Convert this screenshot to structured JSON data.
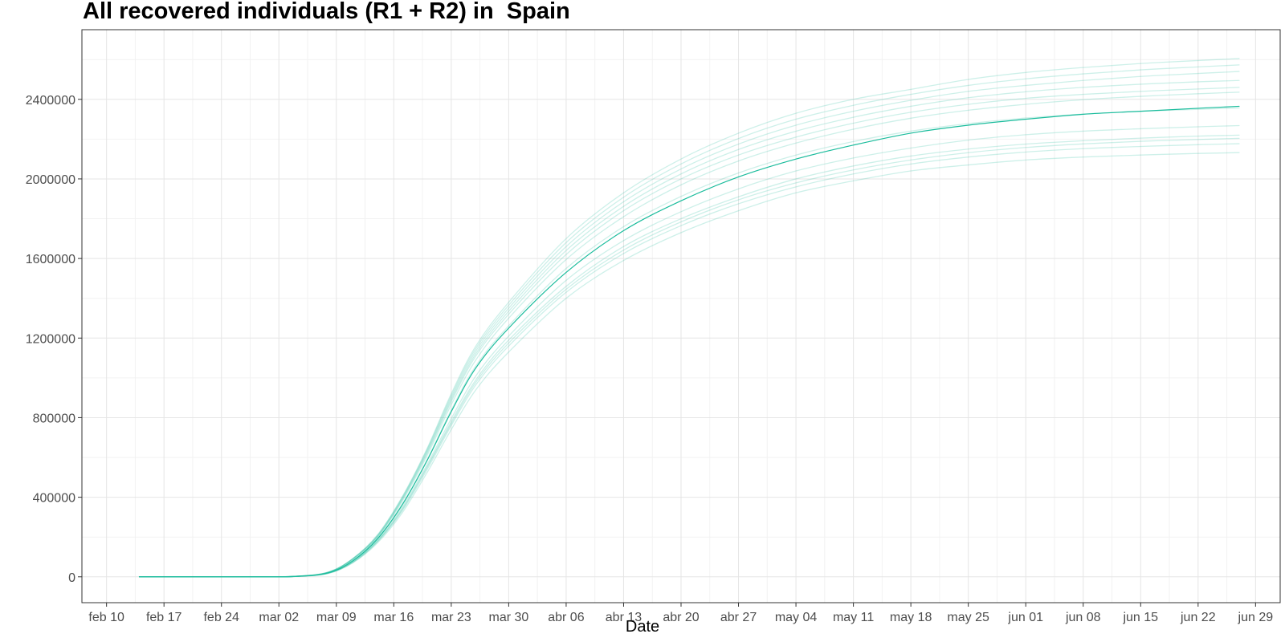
{
  "chart_data": {
    "type": "line",
    "title": "All recovered individuals (R1 + R2) in  Spain",
    "xlabel": "Date",
    "ylabel": "",
    "x_domain": [
      "2020-02-07",
      "2020-07-02"
    ],
    "y_domain": [
      -130000,
      2750000
    ],
    "x_ticks": [
      {
        "date": "2020-02-10",
        "label": "feb 10"
      },
      {
        "date": "2020-02-17",
        "label": "feb 17"
      },
      {
        "date": "2020-02-24",
        "label": "feb 24"
      },
      {
        "date": "2020-03-02",
        "label": "mar 02"
      },
      {
        "date": "2020-03-09",
        "label": "mar 09"
      },
      {
        "date": "2020-03-16",
        "label": "mar 16"
      },
      {
        "date": "2020-03-23",
        "label": "mar 23"
      },
      {
        "date": "2020-03-30",
        "label": "mar 30"
      },
      {
        "date": "2020-04-06",
        "label": "abr 06"
      },
      {
        "date": "2020-04-13",
        "label": "abr 13"
      },
      {
        "date": "2020-04-20",
        "label": "abr 20"
      },
      {
        "date": "2020-04-27",
        "label": "abr 27"
      },
      {
        "date": "2020-05-04",
        "label": "may 04"
      },
      {
        "date": "2020-05-11",
        "label": "may 11"
      },
      {
        "date": "2020-05-18",
        "label": "may 18"
      },
      {
        "date": "2020-05-25",
        "label": "may 25"
      },
      {
        "date": "2020-06-01",
        "label": "jun 01"
      },
      {
        "date": "2020-06-08",
        "label": "jun 08"
      },
      {
        "date": "2020-06-15",
        "label": "jun 15"
      },
      {
        "date": "2020-06-22",
        "label": "jun 22"
      },
      {
        "date": "2020-06-29",
        "label": "jun 29"
      }
    ],
    "y_ticks": [
      0,
      400000,
      800000,
      1200000,
      1600000,
      2000000,
      2400000
    ],
    "grid": true,
    "legend": "none",
    "line_color": "#1abc9c",
    "series": [
      {
        "x": [
          "2020-02-14",
          "2020-02-21",
          "2020-02-28",
          "2020-03-04",
          "2020-03-08",
          "2020-03-11",
          "2020-03-14",
          "2020-03-17",
          "2020-03-20",
          "2020-03-23",
          "2020-03-26",
          "2020-03-30",
          "2020-04-06",
          "2020-04-13",
          "2020-04-20",
          "2020-04-27",
          "2020-05-04",
          "2020-05-11",
          "2020-05-18",
          "2020-05-25",
          "2020-06-01",
          "2020-06-08",
          "2020-06-15",
          "2020-06-22",
          "2020-06-27"
        ],
        "y": [
          0,
          0,
          0,
          2000,
          20000,
          80000,
          190000,
          360000,
          580000,
          830000,
          1050000,
          1250000,
          1530000,
          1740000,
          1890000,
          2010000,
          2100000,
          2170000,
          2230000,
          2270000,
          2300000,
          2325000,
          2340000,
          2355000,
          2365000
        ]
      },
      {
        "x": [
          "2020-02-14",
          "2020-02-21",
          "2020-02-28",
          "2020-03-04",
          "2020-03-08",
          "2020-03-11",
          "2020-03-14",
          "2020-03-17",
          "2020-03-20",
          "2020-03-23",
          "2020-03-26",
          "2020-03-30",
          "2020-04-06",
          "2020-04-13",
          "2020-04-20",
          "2020-04-27",
          "2020-05-04",
          "2020-05-11",
          "2020-05-18",
          "2020-05-25",
          "2020-06-01",
          "2020-06-08",
          "2020-06-15",
          "2020-06-22",
          "2020-06-27"
        ],
        "y": [
          0,
          0,
          0,
          2500,
          24000,
          92000,
          210000,
          400000,
          640000,
          920000,
          1160000,
          1380000,
          1700000,
          1930000,
          2100000,
          2230000,
          2330000,
          2400000,
          2450000,
          2500000,
          2535000,
          2560000,
          2580000,
          2595000,
          2605000
        ]
      },
      {
        "x": [
          "2020-02-14",
          "2020-02-21",
          "2020-02-28",
          "2020-03-04",
          "2020-03-08",
          "2020-03-11",
          "2020-03-14",
          "2020-03-17",
          "2020-03-20",
          "2020-03-23",
          "2020-03-26",
          "2020-03-30",
          "2020-04-06",
          "2020-04-13",
          "2020-04-20",
          "2020-04-27",
          "2020-05-04",
          "2020-05-11",
          "2020-05-18",
          "2020-05-25",
          "2020-06-01",
          "2020-06-08",
          "2020-06-15",
          "2020-06-22",
          "2020-06-27"
        ],
        "y": [
          0,
          0,
          0,
          1600,
          17000,
          70000,
          170000,
          320000,
          520000,
          740000,
          940000,
          1130000,
          1400000,
          1590000,
          1730000,
          1840000,
          1930000,
          1990000,
          2040000,
          2070000,
          2095000,
          2110000,
          2120000,
          2128000,
          2132000
        ]
      },
      {
        "x": [
          "2020-02-14",
          "2020-02-21",
          "2020-02-28",
          "2020-03-04",
          "2020-03-08",
          "2020-03-11",
          "2020-03-14",
          "2020-03-17",
          "2020-03-20",
          "2020-03-23",
          "2020-03-26",
          "2020-03-30",
          "2020-04-06",
          "2020-04-13",
          "2020-04-20",
          "2020-04-27",
          "2020-05-04",
          "2020-05-11",
          "2020-05-18",
          "2020-05-25",
          "2020-06-01",
          "2020-06-08",
          "2020-06-15",
          "2020-06-22",
          "2020-06-27"
        ],
        "y": [
          0,
          0,
          0,
          2300,
          22000,
          88000,
          200000,
          385000,
          615000,
          880000,
          1110000,
          1320000,
          1620000,
          1840000,
          2000000,
          2120000,
          2210000,
          2280000,
          2335000,
          2375000,
          2405000,
          2425000,
          2440000,
          2452000,
          2460000
        ]
      },
      {
        "x": [
          "2020-02-14",
          "2020-02-21",
          "2020-02-28",
          "2020-03-04",
          "2020-03-08",
          "2020-03-11",
          "2020-03-14",
          "2020-03-17",
          "2020-03-20",
          "2020-03-23",
          "2020-03-26",
          "2020-03-30",
          "2020-04-06",
          "2020-04-13",
          "2020-04-20",
          "2020-04-27",
          "2020-05-04",
          "2020-05-11",
          "2020-05-18",
          "2020-05-25",
          "2020-06-01",
          "2020-06-08",
          "2020-06-15",
          "2020-06-22",
          "2020-06-27"
        ],
        "y": [
          0,
          0,
          0,
          1800,
          18500,
          75000,
          180000,
          340000,
          550000,
          780000,
          990000,
          1190000,
          1460000,
          1660000,
          1800000,
          1910000,
          2000000,
          2065000,
          2115000,
          2150000,
          2175000,
          2192000,
          2205000,
          2215000,
          2220000
        ]
      },
      {
        "x": [
          "2020-02-14",
          "2020-02-21",
          "2020-02-28",
          "2020-03-04",
          "2020-03-08",
          "2020-03-11",
          "2020-03-14",
          "2020-03-17",
          "2020-03-20",
          "2020-03-23",
          "2020-03-26",
          "2020-03-30",
          "2020-04-06",
          "2020-04-13",
          "2020-04-20",
          "2020-04-27",
          "2020-05-04",
          "2020-05-11",
          "2020-05-18",
          "2020-05-25",
          "2020-06-01",
          "2020-06-08",
          "2020-06-15",
          "2020-06-22",
          "2020-06-27"
        ],
        "y": [
          0,
          0,
          0,
          2400,
          23000,
          90000,
          205000,
          392000,
          628000,
          900000,
          1135000,
          1350000,
          1660000,
          1885000,
          2050000,
          2175000,
          2270000,
          2340000,
          2395000,
          2440000,
          2470000,
          2495000,
          2515000,
          2530000,
          2540000
        ]
      },
      {
        "x": [
          "2020-02-14",
          "2020-02-21",
          "2020-02-28",
          "2020-03-04",
          "2020-03-08",
          "2020-03-11",
          "2020-03-14",
          "2020-03-17",
          "2020-03-20",
          "2020-03-23",
          "2020-03-26",
          "2020-03-30",
          "2020-04-06",
          "2020-04-13",
          "2020-04-20",
          "2020-04-27",
          "2020-05-04",
          "2020-05-11",
          "2020-05-18",
          "2020-05-25",
          "2020-06-01",
          "2020-06-08",
          "2020-06-15",
          "2020-06-22",
          "2020-06-27"
        ],
        "y": [
          0,
          0,
          0,
          1700,
          17500,
          72000,
          175000,
          330000,
          535000,
          760000,
          965000,
          1160000,
          1430000,
          1625000,
          1765000,
          1875000,
          1960000,
          2025000,
          2075000,
          2110000,
          2135000,
          2152000,
          2163000,
          2172000,
          2177000
        ]
      },
      {
        "x": [
          "2020-02-14",
          "2020-02-21",
          "2020-02-28",
          "2020-03-04",
          "2020-03-08",
          "2020-03-11",
          "2020-03-14",
          "2020-03-17",
          "2020-03-20",
          "2020-03-23",
          "2020-03-26",
          "2020-03-30",
          "2020-04-06",
          "2020-04-13",
          "2020-04-20",
          "2020-04-27",
          "2020-05-04",
          "2020-05-11",
          "2020-05-18",
          "2020-05-25",
          "2020-06-01",
          "2020-06-08",
          "2020-06-15",
          "2020-06-22",
          "2020-06-27"
        ],
        "y": [
          0,
          0,
          0,
          2200,
          21000,
          85000,
          198000,
          378000,
          605000,
          865000,
          1090000,
          1300000,
          1595000,
          1810000,
          1970000,
          2090000,
          2180000,
          2250000,
          2305000,
          2345000,
          2375000,
          2398000,
          2415000,
          2428000,
          2436000
        ]
      },
      {
        "x": [
          "2020-02-14",
          "2020-02-21",
          "2020-02-28",
          "2020-03-04",
          "2020-03-08",
          "2020-03-11",
          "2020-03-14",
          "2020-03-17",
          "2020-03-20",
          "2020-03-23",
          "2020-03-26",
          "2020-03-30",
          "2020-04-06",
          "2020-04-13",
          "2020-04-20",
          "2020-04-27",
          "2020-05-04",
          "2020-05-11",
          "2020-05-18",
          "2020-05-25",
          "2020-06-01",
          "2020-06-08",
          "2020-06-15",
          "2020-06-22",
          "2020-06-27"
        ],
        "y": [
          0,
          0,
          0,
          1900,
          19000,
          77000,
          183000,
          348000,
          560000,
          795000,
          1010000,
          1210000,
          1490000,
          1690000,
          1835000,
          1950000,
          2040000,
          2105000,
          2155000,
          2195000,
          2222000,
          2240000,
          2252000,
          2262000,
          2268000
        ]
      },
      {
        "x": [
          "2020-02-14",
          "2020-02-21",
          "2020-02-28",
          "2020-03-04",
          "2020-03-08",
          "2020-03-11",
          "2020-03-14",
          "2020-03-17",
          "2020-03-20",
          "2020-03-23",
          "2020-03-26",
          "2020-03-30",
          "2020-04-06",
          "2020-04-13",
          "2020-04-20",
          "2020-04-27",
          "2020-05-04",
          "2020-05-11",
          "2020-05-18",
          "2020-05-25",
          "2020-06-01",
          "2020-06-08",
          "2020-06-15",
          "2020-06-22",
          "2020-06-27"
        ],
        "y": [
          0,
          0,
          0,
          2450,
          23500,
          91000,
          208000,
          397000,
          635000,
          910000,
          1148000,
          1365000,
          1680000,
          1908000,
          2075000,
          2203000,
          2300000,
          2370000,
          2425000,
          2470000,
          2503000,
          2528000,
          2548000,
          2563000,
          2573000
        ]
      },
      {
        "x": [
          "2020-02-14",
          "2020-02-21",
          "2020-02-28",
          "2020-03-04",
          "2020-03-08",
          "2020-03-11",
          "2020-03-14",
          "2020-03-17",
          "2020-03-20",
          "2020-03-23",
          "2020-03-26",
          "2020-03-30",
          "2020-04-06",
          "2020-04-13",
          "2020-04-20",
          "2020-04-27",
          "2020-05-04",
          "2020-05-11",
          "2020-05-18",
          "2020-05-25",
          "2020-06-01",
          "2020-06-08",
          "2020-06-15",
          "2020-06-22",
          "2020-06-27"
        ],
        "y": [
          0,
          0,
          0,
          2000,
          20500,
          81000,
          192000,
          364000,
          585000,
          838000,
          1060000,
          1262000,
          1550000,
          1760000,
          1912000,
          2030000,
          2120000,
          2188000,
          2240000,
          2278000,
          2306000,
          2326000,
          2340000,
          2350000,
          2357000
        ]
      },
      {
        "x": [
          "2020-02-14",
          "2020-02-21",
          "2020-02-28",
          "2020-03-04",
          "2020-03-08",
          "2020-03-11",
          "2020-03-14",
          "2020-03-17",
          "2020-03-20",
          "2020-03-23",
          "2020-03-26",
          "2020-03-30",
          "2020-04-06",
          "2020-04-13",
          "2020-04-20",
          "2020-04-27",
          "2020-05-04",
          "2020-05-11",
          "2020-05-18",
          "2020-05-25",
          "2020-06-01",
          "2020-06-08",
          "2020-06-15",
          "2020-06-22",
          "2020-06-27"
        ],
        "y": [
          0,
          0,
          0,
          2350,
          22500,
          89000,
          203000,
          388000,
          622000,
          890000,
          1122000,
          1335000,
          1640000,
          1862000,
          2025000,
          2148000,
          2240000,
          2310000,
          2365000,
          2408000,
          2438000,
          2460000,
          2476000,
          2488000,
          2495000
        ]
      },
      {
        "x": [
          "2020-02-14",
          "2020-02-21",
          "2020-02-28",
          "2020-03-04",
          "2020-03-08",
          "2020-03-11",
          "2020-03-14",
          "2020-03-17",
          "2020-03-20",
          "2020-03-23",
          "2020-03-26",
          "2020-03-30",
          "2020-04-06",
          "2020-04-13",
          "2020-04-20",
          "2020-04-27",
          "2020-05-04",
          "2020-05-11",
          "2020-05-18",
          "2020-05-25",
          "2020-06-01",
          "2020-06-08",
          "2020-06-15",
          "2020-06-22",
          "2020-06-27"
        ],
        "y": [
          0,
          0,
          0,
          1750,
          18000,
          74000,
          178000,
          336000,
          545000,
          770000,
          978000,
          1175000,
          1445000,
          1642000,
          1784000,
          1895000,
          1980000,
          2045000,
          2095000,
          2132000,
          2158000,
          2176000,
          2189000,
          2198000,
          2204000
        ]
      }
    ]
  }
}
